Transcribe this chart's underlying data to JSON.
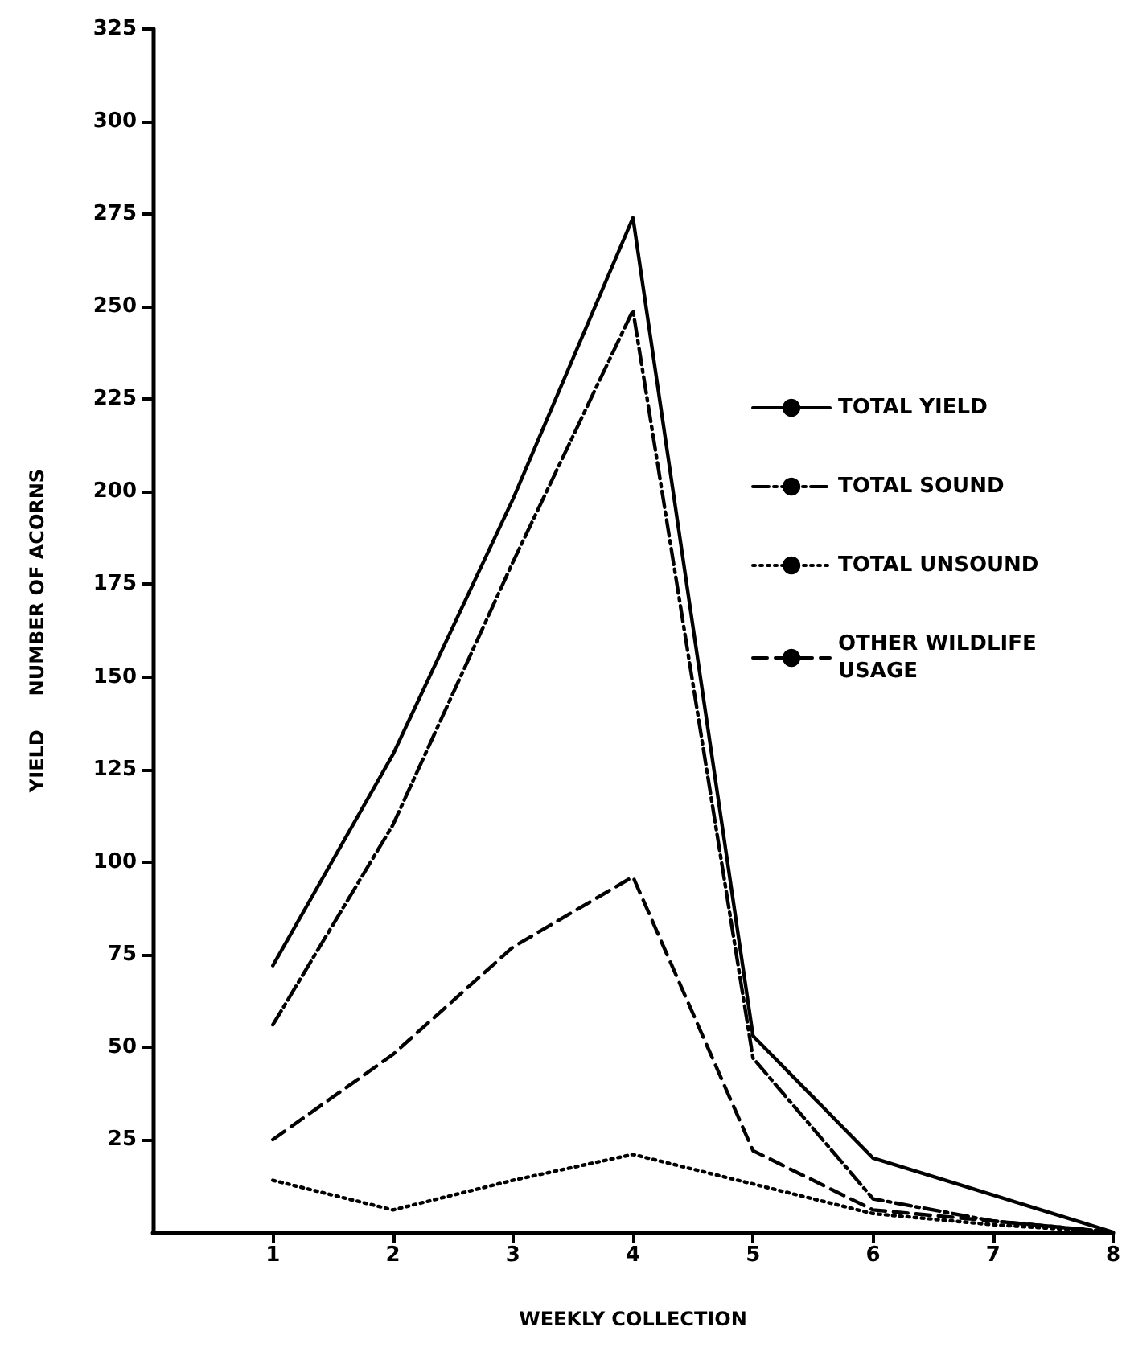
{
  "chart_data": {
    "type": "line",
    "xlabel": "WEEKLY COLLECTION",
    "ylabel": "YIELD     NUMBER OF ACORNS",
    "x": [
      1,
      2,
      3,
      4,
      5,
      6,
      7,
      8
    ],
    "series": [
      {
        "name": "TOTAL YIELD",
        "color": "#000000",
        "line_style": "solid",
        "values": [
          72,
          129,
          198,
          274,
          53,
          20,
          10,
          0
        ]
      },
      {
        "name": "TOTAL SOUND",
        "color": "#000000",
        "line_style": "dashdot",
        "values": [
          56,
          110,
          181,
          249,
          47,
          9,
          3,
          0
        ]
      },
      {
        "name": "TOTAL UNSOUND",
        "color": "#000000",
        "line_style": "dotted",
        "values": [
          14,
          6,
          14,
          21,
          13,
          5,
          2,
          0
        ]
      },
      {
        "name": "OTHER WILDLIFE USAGE",
        "color": "#000000",
        "line_style": "dashed",
        "values": [
          25,
          48,
          77,
          96,
          22,
          6,
          3,
          0
        ]
      }
    ],
    "xlim": [
      0,
      8
    ],
    "xticks": [
      1,
      2,
      3,
      4,
      5,
      6,
      7,
      8
    ],
    "ylim": [
      0,
      325
    ],
    "yticks": [
      25,
      50,
      75,
      100,
      125,
      150,
      175,
      200,
      225,
      250,
      275,
      300,
      325
    ],
    "grid": false,
    "legend": "right",
    "marker": "none"
  }
}
